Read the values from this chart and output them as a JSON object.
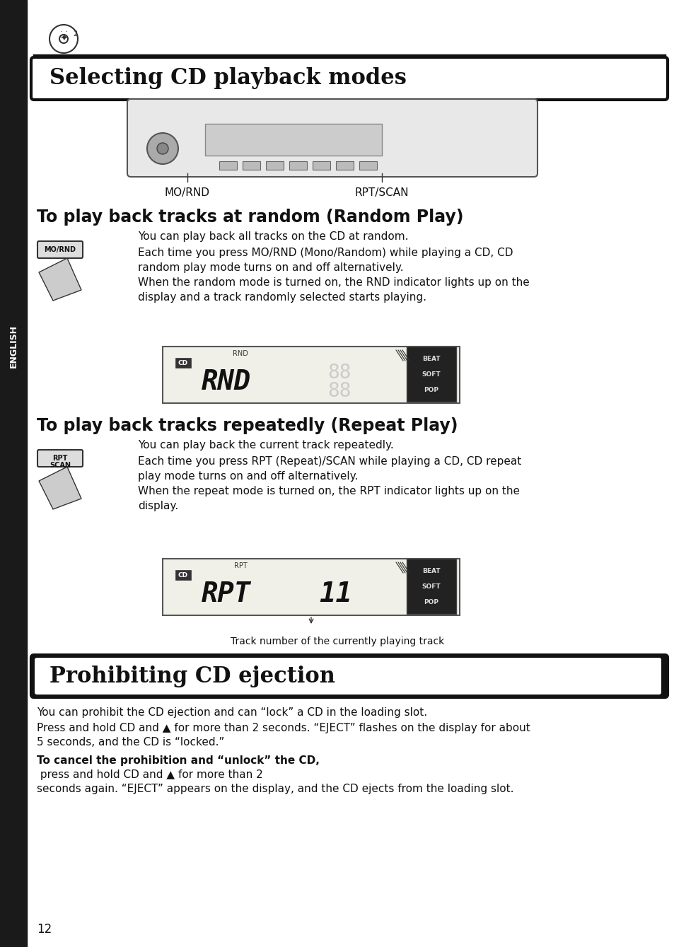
{
  "page_num": "12",
  "background_color": "#ffffff",
  "title1": "Selecting CD playback modes",
  "title2": "Prohibiting CD ejection",
  "section1_heading": "To play back tracks at random (Random Play)",
  "section1_subtext": "You can play back all tracks on the CD at random.",
  "section1_body1": "Each time you press MO/RND (Mono/Random) while playing a CD, CD\nrandom play mode turns on and off alternatively.\nWhen the random mode is turned on, the RND indicator lights up on the\ndisplay and a track randomly selected starts playing.",
  "section2_heading": "To play back tracks repeatedly (Repeat Play)",
  "section2_subtext": "You can play back the current track repeatedly.",
  "section2_body1": "Each time you press RPT (Repeat)/SCAN while playing a CD, CD repeat\nplay mode turns on and off alternatively.\nWhen the repeat mode is turned on, the RPT indicator lights up on the\ndisplay.",
  "caption_rpt": "Track number of the currently playing track",
  "mornd_label": "MO/RND",
  "rptscan_label": "RPT/SCAN",
  "prohibit_body1": "You can prohibit the CD ejection and can “lock” a CD in the loading slot.",
  "prohibit_body2": "Press and hold CD and ▲ for more than 2 seconds. “EJECT” flashes on the display for about\n5 seconds, and the CD is “locked.”",
  "prohibit_body3_bold": "To cancel the prohibition and “unlock” the CD,",
  "prohibit_body3_normal": " press and hold CD and ▲ for more than 2\nseconds again. “EJECT” appears on the display, and the CD ejects from the loading slot.",
  "english_label": "ENGLISH",
  "sidebar_color": "#1a1a1a",
  "title_bg_color": "#f5f5f5",
  "title_border_color": "#111111"
}
